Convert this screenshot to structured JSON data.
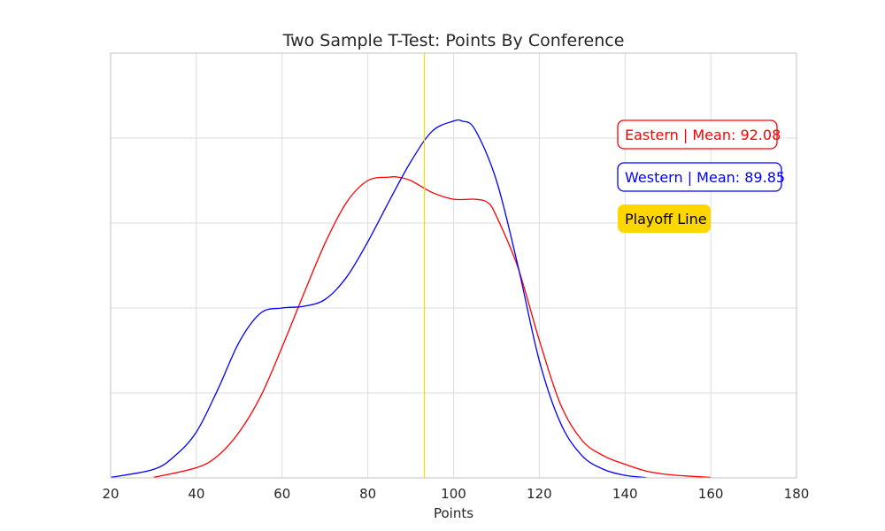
{
  "chart_data": {
    "type": "line",
    "title": "Two Sample T-Test: Points By Conference",
    "xlabel": "Points",
    "ylabel": "",
    "xlim": [
      20,
      180
    ],
    "ylim": [
      0,
      0.025
    ],
    "xticks": [
      "20",
      "40",
      "60",
      "80",
      "100",
      "120",
      "140",
      "160",
      "180"
    ],
    "y_gridlines": [
      0.005,
      0.01,
      0.015,
      0.02
    ],
    "grid": true,
    "series": [
      {
        "name": "Eastern",
        "color": "#ff0000",
        "x": [
          30,
          40,
          45,
          50,
          55,
          60,
          65,
          70,
          75,
          80,
          85,
          87,
          90,
          95,
          100,
          105,
          108,
          110,
          115,
          120,
          125,
          130,
          135,
          140,
          145,
          150,
          155,
          160
        ],
        "y": [
          3e-05,
          0.0006,
          0.0013,
          0.0027,
          0.0048,
          0.0077,
          0.0108,
          0.0138,
          0.0162,
          0.0175,
          0.0177,
          0.0177,
          0.0175,
          0.0168,
          0.0164,
          0.0164,
          0.0162,
          0.0154,
          0.0124,
          0.0081,
          0.0043,
          0.0022,
          0.0013,
          0.0008,
          0.0004,
          0.0002,
          0.0001,
          3e-05
        ]
      },
      {
        "name": "Western",
        "color": "#0000ff",
        "x": [
          20,
          30,
          35,
          40,
          45,
          50,
          55,
          60,
          65,
          70,
          75,
          80,
          85,
          90,
          95,
          100,
          102,
          105,
          110,
          115,
          120,
          125,
          130,
          135,
          140,
          145
        ],
        "y": [
          3e-05,
          0.0005,
          0.0013,
          0.0027,
          0.0052,
          0.008,
          0.0097,
          0.01,
          0.0101,
          0.0105,
          0.0118,
          0.0139,
          0.0163,
          0.0186,
          0.0204,
          0.021,
          0.021,
          0.0205,
          0.0175,
          0.0125,
          0.0069,
          0.0032,
          0.0013,
          0.0005,
          0.00015,
          2e-05
        ]
      }
    ],
    "playoff_line": {
      "x": 93.2,
      "color": "#ffd700"
    },
    "annotations": [
      {
        "text": "Eastern | Mean: 92.08",
        "color": "#ff0000",
        "style": "outlined"
      },
      {
        "text": "Western | Mean: 89.85",
        "color": "#0000ff",
        "style": "outlined"
      },
      {
        "text": "Playoff Line",
        "color": "#ffd700",
        "text_color": "#000000",
        "style": "filled"
      }
    ]
  }
}
